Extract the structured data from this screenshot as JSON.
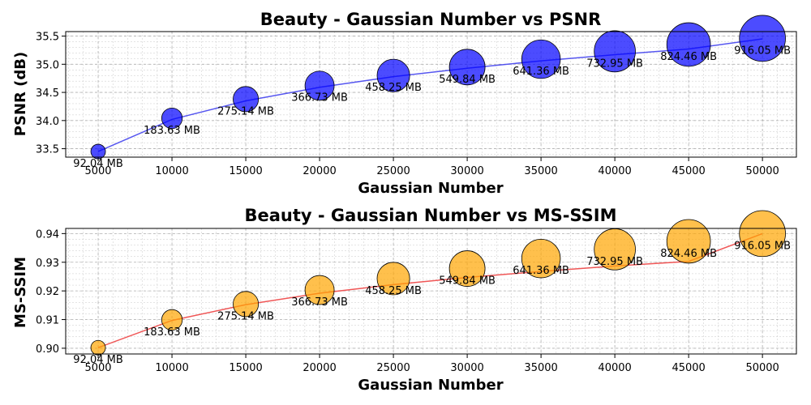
{
  "chart_data": [
    {
      "type": "scatter",
      "title": "Beauty - Gaussian Number vs PSNR",
      "xlabel": "Gaussian Number",
      "ylabel": "PSNR (dB)",
      "xlim": [
        2800,
        52300
      ],
      "ylim": [
        33.35,
        35.58
      ],
      "xticks": [
        5000,
        10000,
        15000,
        20000,
        25000,
        30000,
        35000,
        40000,
        45000,
        50000
      ],
      "yticks": [
        33.5,
        34.0,
        34.5,
        35.0,
        35.5
      ],
      "ytick_labels": [
        "33.5",
        "34.0",
        "34.5",
        "35.0",
        "35.5"
      ],
      "grid": true,
      "marker_color": "#0000ff",
      "line_color": "#4444ee",
      "x": [
        5000,
        10000,
        15000,
        20000,
        25000,
        30000,
        35000,
        40000,
        45000,
        50000
      ],
      "y": [
        33.45,
        34.04,
        34.38,
        34.62,
        34.8,
        34.95,
        35.09,
        35.23,
        35.35,
        35.46
      ],
      "trend_y": [
        33.45,
        34.02,
        34.35,
        34.59,
        34.78,
        34.93,
        35.06,
        35.17,
        35.27,
        35.45
      ],
      "sizes": [
        "92.04 MB",
        "183.63 MB",
        "275.14 MB",
        "366.73 MB",
        "458.25 MB",
        "549.84 MB",
        "641.36 MB",
        "732.95 MB",
        "824.46 MB",
        "916.05 MB"
      ]
    },
    {
      "type": "scatter",
      "title": "Beauty - Gaussian Number vs MS-SSIM",
      "xlabel": "Gaussian Number",
      "ylabel": "MS-SSIM",
      "xlim": [
        2800,
        52300
      ],
      "ylim": [
        0.898,
        0.9418
      ],
      "xticks": [
        5000,
        10000,
        15000,
        20000,
        25000,
        30000,
        35000,
        40000,
        45000,
        50000
      ],
      "yticks": [
        0.9,
        0.91,
        0.92,
        0.93,
        0.94
      ],
      "ytick_labels": [
        "0.90",
        "0.91",
        "0.92",
        "0.93",
        "0.94"
      ],
      "grid": true,
      "marker_color": "#ffa500",
      "line_color": "#ee4444",
      "x": [
        5000,
        10000,
        15000,
        20000,
        25000,
        30000,
        35000,
        40000,
        45000,
        50000
      ],
      "y": [
        0.9002,
        0.9099,
        0.9154,
        0.9203,
        0.9243,
        0.9278,
        0.9313,
        0.9345,
        0.9373,
        0.94
      ],
      "trend_y": [
        0.9002,
        0.9097,
        0.9152,
        0.9192,
        0.9222,
        0.9247,
        0.9268,
        0.9287,
        0.9303,
        0.94
      ],
      "sizes": [
        "92.04 MB",
        "183.63 MB",
        "275.14 MB",
        "366.73 MB",
        "458.25 MB",
        "549.84 MB",
        "641.36 MB",
        "732.95 MB",
        "824.46 MB",
        "916.05 MB"
      ]
    }
  ]
}
